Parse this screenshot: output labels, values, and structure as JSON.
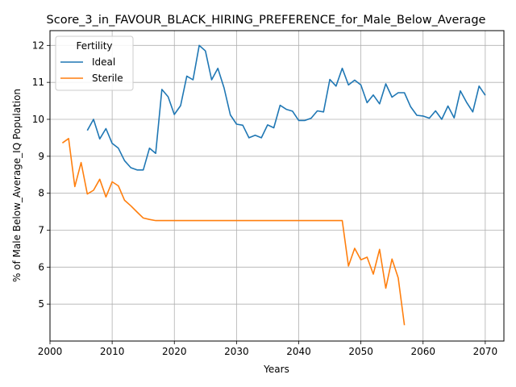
{
  "chart_data": {
    "type": "line",
    "title": "Score_3_in_FAVOUR_BLACK_HIRING_PREFERENCE_for_Male_Below_Average",
    "xlabel": "Years",
    "ylabel": "% of Male Below_Average_IQ Population",
    "xlim": [
      2000,
      2073
    ],
    "ylim": [
      4.0,
      12.4
    ],
    "xticks": [
      2000,
      2010,
      2020,
      2030,
      2040,
      2050,
      2060,
      2070
    ],
    "yticks": [
      5,
      6,
      7,
      8,
      9,
      10,
      11,
      12
    ],
    "grid": true,
    "legend": {
      "title": "Fertility",
      "position": "top-left"
    },
    "series": [
      {
        "name": "Ideal",
        "color": "#1f77b4",
        "x": [
          2006,
          2007,
          2008,
          2009,
          2010,
          2011,
          2012,
          2013,
          2014,
          2015,
          2016,
          2017,
          2018,
          2019,
          2020,
          2021,
          2022,
          2023,
          2024,
          2025,
          2026,
          2027,
          2028,
          2029,
          2030,
          2031,
          2032,
          2033,
          2034,
          2035,
          2036,
          2037,
          2038,
          2039,
          2040,
          2041,
          2042,
          2043,
          2044,
          2045,
          2046,
          2047,
          2048,
          2049,
          2050,
          2051,
          2052,
          2053,
          2054,
          2055,
          2056,
          2057,
          2058,
          2059,
          2060,
          2061,
          2062,
          2063,
          2064,
          2065,
          2066,
          2067,
          2068,
          2069,
          2070
        ],
        "values": [
          9.7,
          10.0,
          9.47,
          9.75,
          9.35,
          9.22,
          8.88,
          8.69,
          8.63,
          8.63,
          9.22,
          9.08,
          10.81,
          10.61,
          10.13,
          10.37,
          11.17,
          11.07,
          12.0,
          11.85,
          11.07,
          11.38,
          10.85,
          10.12,
          9.87,
          9.84,
          9.5,
          9.57,
          9.5,
          9.85,
          9.77,
          10.38,
          10.27,
          10.22,
          9.97,
          9.97,
          10.03,
          10.23,
          10.2,
          11.08,
          10.9,
          11.38,
          10.93,
          11.06,
          10.93,
          10.45,
          10.66,
          10.42,
          10.96,
          10.6,
          10.72,
          10.72,
          10.34,
          10.11,
          10.09,
          10.03,
          10.23,
          10.0,
          10.36,
          10.04,
          10.77,
          10.46,
          10.2,
          10.9,
          10.65
        ]
      },
      {
        "name": "Sterile",
        "color": "#ff7f0e",
        "x": [
          2002,
          2003,
          2004,
          2005,
          2006,
          2007,
          2008,
          2009,
          2010,
          2011,
          2012,
          2013,
          2014,
          2015,
          2016,
          2017,
          2018,
          2019,
          2020,
          2021,
          2022,
          2023,
          2024,
          2025,
          2026,
          2027,
          2028,
          2029,
          2030,
          2031,
          2032,
          2033,
          2034,
          2035,
          2036,
          2037,
          2038,
          2039,
          2040,
          2041,
          2042,
          2043,
          2044,
          2045,
          2046,
          2047,
          2048,
          2049,
          2050,
          2051,
          2052,
          2053,
          2054,
          2055,
          2056,
          2057
        ],
        "values": [
          9.36,
          9.48,
          8.18,
          8.83,
          7.98,
          8.08,
          8.38,
          7.9,
          8.31,
          8.2,
          7.81,
          7.66,
          7.49,
          7.33,
          7.29,
          7.26,
          7.26,
          7.26,
          7.26,
          7.26,
          7.26,
          7.26,
          7.26,
          7.26,
          7.26,
          7.26,
          7.26,
          7.26,
          7.26,
          7.26,
          7.26,
          7.26,
          7.26,
          7.26,
          7.26,
          7.26,
          7.26,
          7.26,
          7.26,
          7.26,
          7.26,
          7.26,
          7.26,
          7.26,
          7.26,
          7.26,
          6.03,
          6.51,
          6.2,
          6.27,
          5.81,
          6.48,
          5.43,
          6.22,
          5.71,
          4.43
        ]
      }
    ]
  }
}
